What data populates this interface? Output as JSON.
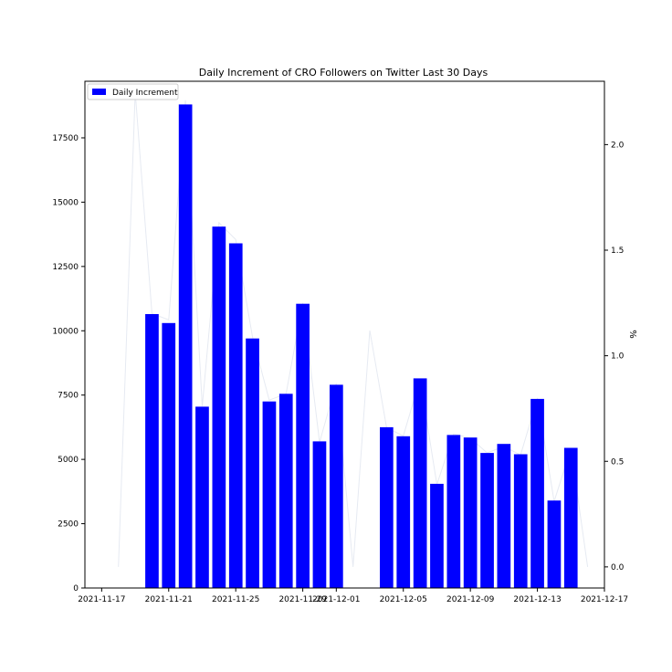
{
  "chart_data": {
    "type": "bar",
    "title": "Daily Increment of CRO Followers on Twitter Last 30 Days",
    "xlabel": "",
    "ylabel": "",
    "y2label": "%",
    "legend": {
      "placement": "top-left",
      "entries": [
        "Daily Increment"
      ]
    },
    "grid": false,
    "xlim": [
      "2021-11-16",
      "2021-12-17"
    ],
    "ylim": [
      0,
      19700
    ],
    "y2lim": [
      -0.1,
      2.3
    ],
    "x_ticks": [
      "2021-11-17",
      "2021-11-21",
      "2021-11-25",
      "2021-11-29",
      "2021-12-01",
      "2021-12-05",
      "2021-12-09",
      "2021-12-13",
      "2021-12-17"
    ],
    "y_ticks": [
      0,
      2500,
      5000,
      7500,
      10000,
      12500,
      15000,
      17500
    ],
    "y2_ticks": [
      0.0,
      0.5,
      1.0,
      1.5,
      2.0
    ],
    "series": [
      {
        "name": "Daily Increment",
        "axis": "left",
        "color": "#0000ff",
        "x": [
          "2021-11-20",
          "2021-11-21",
          "2021-11-22",
          "2021-11-23",
          "2021-11-24",
          "2021-11-25",
          "2021-11-26",
          "2021-11-27",
          "2021-11-28",
          "2021-11-29",
          "2021-11-30",
          "2021-12-01",
          "2021-12-04",
          "2021-12-05",
          "2021-12-06",
          "2021-12-07",
          "2021-12-08",
          "2021-12-09",
          "2021-12-10",
          "2021-12-11",
          "2021-12-12",
          "2021-12-13",
          "2021-12-14",
          "2021-12-15"
        ],
        "values": [
          10650,
          10300,
          18800,
          7050,
          14050,
          13400,
          9700,
          7250,
          7550,
          11050,
          5700,
          7900,
          6250,
          5900,
          8150,
          4050,
          5950,
          5850,
          5250,
          5600,
          5200,
          7350,
          3400,
          5450
        ]
      },
      {
        "type": "line",
        "axis": "right",
        "color": "#e6eaf2",
        "x": [
          "2021-11-18",
          "2021-11-19",
          "2021-11-20",
          "2021-11-21",
          "2021-11-22",
          "2021-11-23",
          "2021-11-24",
          "2021-11-25",
          "2021-11-26",
          "2021-11-27",
          "2021-11-28",
          "2021-11-29",
          "2021-11-30",
          "2021-12-01",
          "2021-12-02",
          "2021-12-03",
          "2021-12-04",
          "2021-12-05",
          "2021-12-06",
          "2021-12-07",
          "2021-12-08",
          "2021-12-09",
          "2021-12-10",
          "2021-12-11",
          "2021-12-12",
          "2021-12-13",
          "2021-12-14",
          "2021-12-15",
          "2021-12-16"
        ],
        "values": [
          0.0,
          2.25,
          1.2,
          1.17,
          2.21,
          0.76,
          1.63,
          1.55,
          1.09,
          0.79,
          0.82,
          1.25,
          0.59,
          0.87,
          0.0,
          1.12,
          0.66,
          0.62,
          0.89,
          0.39,
          0.63,
          0.61,
          0.54,
          0.57,
          0.53,
          0.8,
          0.31,
          0.56,
          0.0
        ]
      }
    ]
  }
}
